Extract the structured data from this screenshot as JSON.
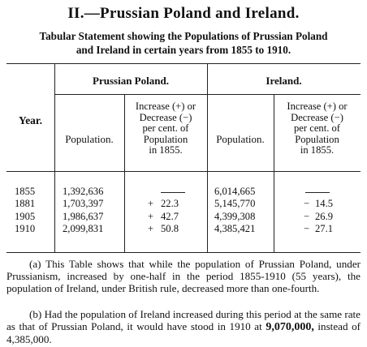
{
  "title": "II.—Prussian Poland and Ireland.",
  "subtitle": {
    "line1": "Tabular Statement showing the Populations of Prussian Poland",
    "line2": "and Ireland in certain years from 1855 to 1910."
  },
  "table": {
    "year_header": "Year.",
    "poland_header": "Prussian Poland.",
    "ireland_header": "Ireland.",
    "population_header": "Population.",
    "increase_header": [
      "Increase (+) or",
      "Decrease (−)",
      "per cent. of",
      "Population",
      "in 1855."
    ],
    "rows": [
      {
        "year": "1855",
        "poland_pop": "1,392,636",
        "poland_sign": "",
        "poland_pct": "",
        "ireland_pop": "6,014,665",
        "ireland_sign": "",
        "ireland_pct": ""
      },
      {
        "year": "1881",
        "poland_pop": "1,703,397",
        "poland_sign": "+",
        "poland_pct": "22.3",
        "ireland_pop": "5,145,770",
        "ireland_sign": "−",
        "ireland_pct": "14.5"
      },
      {
        "year": "1905",
        "poland_pop": "1,986,637",
        "poland_sign": "+",
        "poland_pct": "42.7",
        "ireland_pop": "4,399,308",
        "ireland_sign": "−",
        "ireland_pct": "26.9"
      },
      {
        "year": "1910",
        "poland_pop": "2,099,831",
        "poland_sign": "+",
        "poland_pct": "50.8",
        "ireland_pop": "4,385,421",
        "ireland_sign": "−",
        "ireland_pct": "27.1"
      }
    ]
  },
  "notes": {
    "a": "(a) This Table shows that while the population of Prussian Poland, under Prussianism, increased by one-half in the period 1855-1910 (55 years), the population of Ireland, under British rule, decreased more than one-fourth.",
    "b_part1": "(b) Had the population of Ireland increased during this period at the same rate as that of Prussian Poland, it would have stood in 1910 at",
    "b_bold": "9,070,000,",
    "b_part2": "instead of 4,385,000."
  }
}
